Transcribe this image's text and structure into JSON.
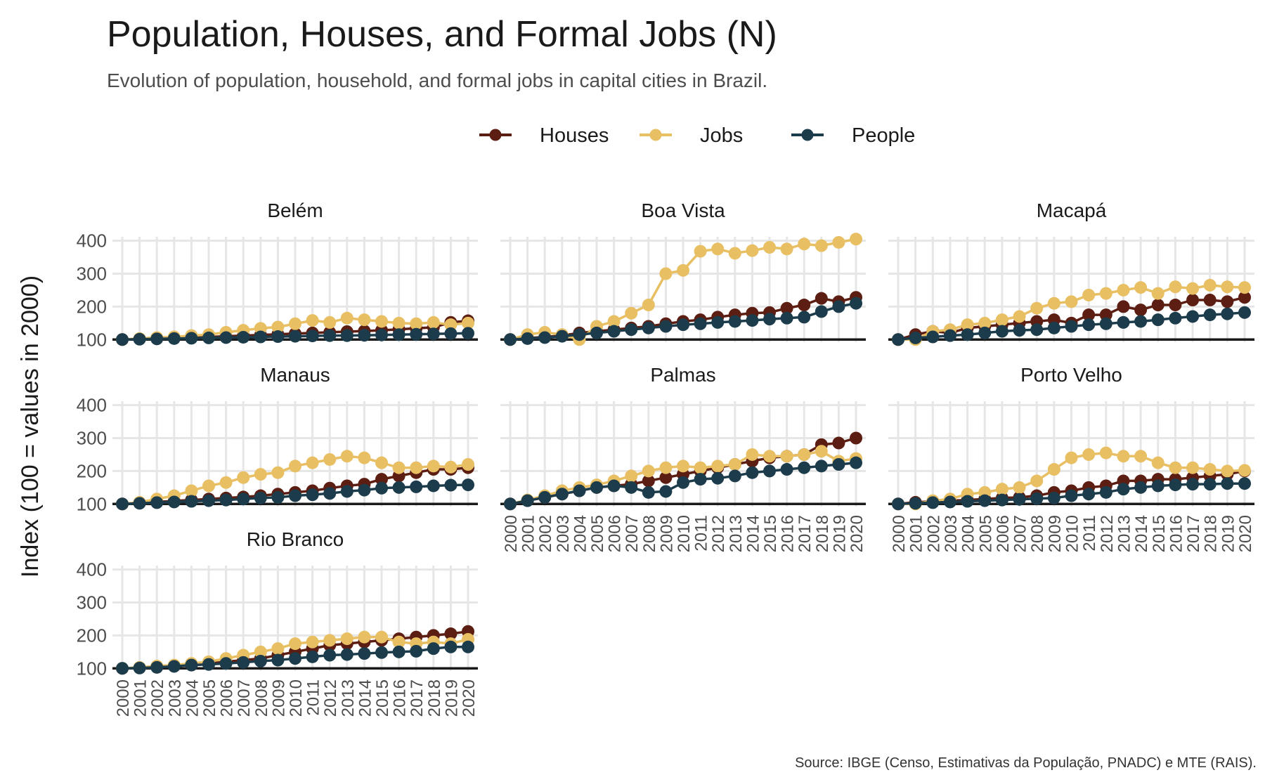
{
  "chart_data": {
    "type": "line",
    "title": "Population, Houses, and Formal Jobs (N)",
    "subtitle": "Evolution of population, household, and formal jobs in capital cities in Brazil.",
    "ylabel": "Index (100 = values in 2000)",
    "caption": "Source: IBGE (Censo, Estimativas da População, PNADC) e MTE (RAIS).",
    "legend_position": "top",
    "grid": true,
    "x": [
      "2000",
      "2001",
      "2002",
      "2003",
      "2004",
      "2005",
      "2006",
      "2007",
      "2008",
      "2009",
      "2010",
      "2011",
      "2012",
      "2013",
      "2014",
      "2015",
      "2016",
      "2017",
      "2018",
      "2019",
      "2020"
    ],
    "y_ticks": [
      100,
      200,
      300,
      400
    ],
    "ylim": [
      92,
      412
    ],
    "series_styles": [
      {
        "name": "Houses",
        "color": "#5c1e12"
      },
      {
        "name": "Jobs",
        "color": "#e8bf63"
      },
      {
        "name": "People",
        "color": "#1c3c4c"
      }
    ],
    "panels": [
      {
        "name": "Belém",
        "series": [
          {
            "name": "Houses",
            "values": [
              100,
              102,
              104,
              106,
              107,
              108,
              110,
              112,
              114,
              116,
              118,
              120,
              122,
              124,
              126,
              128,
              131,
              134,
              137,
              152,
              157
            ]
          },
          {
            "name": "Jobs",
            "values": [
              100,
              103,
              106,
              108,
              112,
              115,
              122,
              128,
              134,
              138,
              148,
              158,
              152,
              165,
              160,
              155,
              150,
              148,
              152,
              145,
              150
            ]
          },
          {
            "name": "People",
            "values": [
              100,
              101,
              102,
              103,
              104,
              105,
              106,
              107,
              108,
              109,
              110,
              111,
              112,
              112,
              113,
              114,
              115,
              116,
              117,
              118,
              119
            ]
          }
        ]
      },
      {
        "name": "Boa Vista",
        "series": [
          {
            "name": "Houses",
            "values": [
              100,
              104,
              108,
              112,
              120,
              125,
              130,
              135,
              140,
              148,
              155,
              160,
              168,
              175,
              180,
              182,
              195,
              205,
              225,
              215,
              228
            ]
          },
          {
            "name": "Jobs",
            "values": [
              100,
              115,
              122,
              115,
              100,
              140,
              155,
              180,
              205,
              300,
              310,
              368,
              375,
              362,
              370,
              380,
              375,
              390,
              385,
              395,
              405
            ]
          },
          {
            "name": "People",
            "values": [
              100,
              103,
              106,
              110,
              115,
              120,
              125,
              130,
              135,
              140,
              145,
              148,
              152,
              155,
              158,
              162,
              165,
              168,
              185,
              200,
              210
            ]
          }
        ]
      },
      {
        "name": "Macapá",
        "series": [
          {
            "name": "Houses",
            "values": [
              100,
              115,
              125,
              120,
              135,
              140,
              145,
              150,
              155,
              160,
              150,
              175,
              175,
              200,
              190,
              205,
              205,
              220,
              220,
              215,
              228
            ]
          },
          {
            "name": "Jobs",
            "values": [
              100,
              100,
              125,
              130,
              145,
              150,
              160,
              170,
              195,
              210,
              215,
              235,
              240,
              250,
              258,
              240,
              260,
              255,
              265,
              260,
              258
            ]
          },
          {
            "name": "People",
            "values": [
              100,
              105,
              108,
              112,
              115,
              120,
              125,
              128,
              130,
              135,
              140,
              145,
              148,
              152,
              155,
              160,
              165,
              170,
              175,
              178,
              182
            ]
          }
        ]
      },
      {
        "name": "Manaus",
        "series": [
          {
            "name": "Houses",
            "values": [
              100,
              103,
              106,
              109,
              112,
              115,
              118,
              121,
              125,
              130,
              135,
              140,
              148,
              155,
              160,
              175,
              185,
              195,
              205,
              205,
              210
            ]
          },
          {
            "name": "Jobs",
            "values": [
              100,
              105,
              115,
              125,
              140,
              155,
              165,
              180,
              190,
              195,
              215,
              225,
              235,
              245,
              240,
              225,
              210,
              210,
              215,
              212,
              220
            ]
          },
          {
            "name": "People",
            "values": [
              100,
              102,
              104,
              106,
              108,
              110,
              112,
              115,
              118,
              120,
              125,
              128,
              132,
              138,
              142,
              148,
              150,
              152,
              155,
              157,
              158
            ]
          }
        ]
      },
      {
        "name": "Palmas",
        "series": [
          {
            "name": "Houses",
            "values": [
              100,
              110,
              120,
              130,
              140,
              150,
              155,
              160,
              170,
              180,
              190,
              200,
              210,
              220,
              230,
              240,
              245,
              250,
              280,
              285,
              300
            ]
          },
          {
            "name": "Jobs",
            "values": [
              100,
              112,
              125,
              140,
              150,
              158,
              170,
              185,
              200,
              210,
              215,
              210,
              215,
              220,
              250,
              245,
              245,
              250,
              260,
              230,
              238
            ]
          },
          {
            "name": "People",
            "values": [
              100,
              110,
              120,
              130,
              140,
              150,
              155,
              150,
              135,
              138,
              165,
              175,
              178,
              185,
              195,
              200,
              205,
              210,
              215,
              220,
              225
            ]
          }
        ]
      },
      {
        "name": "Porto Velho",
        "series": [
          {
            "name": "Houses",
            "values": [
              100,
              105,
              108,
              110,
              112,
              115,
              118,
              120,
              125,
              135,
              140,
              150,
              155,
              170,
              170,
              175,
              175,
              180,
              185,
              190,
              200
            ]
          },
          {
            "name": "Jobs",
            "values": [
              100,
              100,
              110,
              115,
              130,
              135,
              145,
              150,
              170,
              205,
              240,
              250,
              255,
              245,
              245,
              225,
              210,
              210,
              205,
              200,
              202
            ]
          },
          {
            "name": "People",
            "values": [
              100,
              102,
              104,
              106,
              108,
              110,
              112,
              114,
              116,
              118,
              125,
              130,
              135,
              145,
              150,
              155,
              158,
              160,
              160,
              162,
              162
            ]
          }
        ]
      },
      {
        "name": "Rio Branco",
        "series": [
          {
            "name": "Houses",
            "values": [
              100,
              102,
              105,
              108,
              110,
              115,
              120,
              125,
              130,
              140,
              150,
              160,
              170,
              175,
              180,
              185,
              190,
              195,
              200,
              205,
              212
            ]
          },
          {
            "name": "Jobs",
            "values": [
              100,
              103,
              107,
              110,
              115,
              120,
              130,
              140,
              150,
              160,
              175,
              180,
              185,
              190,
              195,
              195,
              180,
              175,
              180,
              175,
              188
            ]
          },
          {
            "name": "People",
            "values": [
              100,
              101,
              103,
              106,
              110,
              112,
              115,
              118,
              122,
              125,
              130,
              135,
              140,
              142,
              145,
              148,
              150,
              152,
              160,
              165,
              165
            ]
          }
        ]
      }
    ]
  }
}
